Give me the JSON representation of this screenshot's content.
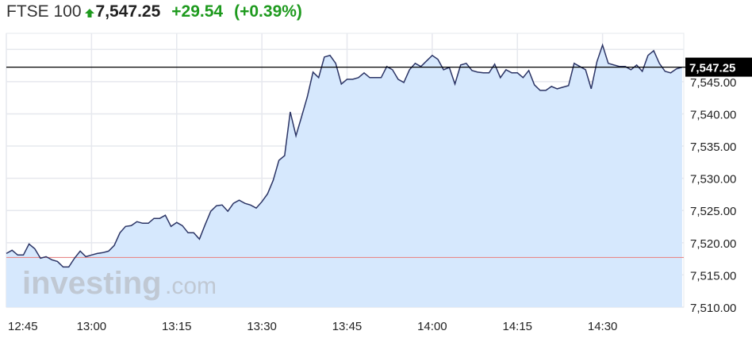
{
  "header": {
    "instrument": "FTSE 100",
    "direction_icon": "arrow-up-icon",
    "last": "7,547.25",
    "change": "+29.54",
    "change_percent": "(+0.39%)",
    "up_color": "#1e9a1e"
  },
  "watermark": {
    "brand": "investing",
    "suffix": ".com"
  },
  "chart_data": {
    "type": "area",
    "title": "",
    "xlabel": "",
    "ylabel": "",
    "x_start": "12:45",
    "interval_minutes": 1,
    "x_ticks": [
      "12:45",
      "13:00",
      "13:15",
      "13:30",
      "13:45",
      "14:00",
      "14:15",
      "14:30"
    ],
    "y_ticks": [
      "7,510.00",
      "7,515.00",
      "7,520.00",
      "7,525.00",
      "7,530.00",
      "7,535.00",
      "7,540.00",
      "7,545.00"
    ],
    "y_tick_values": [
      7510,
      7515,
      7520,
      7525,
      7530,
      7535,
      7540,
      7545
    ],
    "ylim": [
      7510,
      7552.5
    ],
    "xlim": [
      "12:45",
      "14:44"
    ],
    "grid": true,
    "last_value": 7547.25,
    "last_value_label": "7,547.25",
    "previous_close": 7517.71,
    "line_color": "#2b3465",
    "fill_color": "#d6e8fd",
    "previous_close_color": "#e88a8a",
    "values": [
      7518.33,
      7518.83,
      7518.09,
      7518.09,
      7519.81,
      7519.07,
      7517.59,
      7517.84,
      7517.35,
      7517.1,
      7516.23,
      7516.23,
      7517.59,
      7518.7,
      7517.84,
      7518.09,
      7518.33,
      7518.46,
      7518.7,
      7519.57,
      7521.54,
      7522.53,
      7522.65,
      7523.27,
      7523.02,
      7523.02,
      7523.77,
      7523.77,
      7524.26,
      7522.53,
      7523.15,
      7522.65,
      7521.54,
      7521.54,
      7520.56,
      7522.78,
      7524.88,
      7525.74,
      7525.86,
      7524.88,
      7526.11,
      7526.6,
      7526.11,
      7525.86,
      7525.37,
      7526.36,
      7527.59,
      7529.69,
      7532.78,
      7533.52,
      7540.31,
      7536.6,
      7539.57,
      7542.65,
      7546.48,
      7545.62,
      7548.83,
      7549.07,
      7547.84,
      7544.63,
      7545.37,
      7545.37,
      7545.62,
      7546.36,
      7545.62,
      7545.62,
      7545.62,
      7547.35,
      7546.85,
      7545.37,
      7544.88,
      7546.85,
      7547.84,
      7547.35,
      7548.21,
      7549.07,
      7548.46,
      7546.85,
      7547.22,
      7544.63,
      7547.59,
      7547.84,
      7546.73,
      7546.48,
      7546.36,
      7546.36,
      7547.72,
      7545.62,
      7546.85,
      7546.36,
      7546.36,
      7545.62,
      7546.73,
      7544.51,
      7543.64,
      7543.64,
      7544.26,
      7543.89,
      7544.14,
      7544.38,
      7547.84,
      7547.35,
      7546.85,
      7543.89,
      7548.09,
      7550.68,
      7547.84,
      7547.59,
      7547.35,
      7547.35,
      7546.85,
      7547.59,
      7546.6,
      7549.07,
      7549.81,
      7547.84,
      7546.6,
      7546.36,
      7546.98,
      7547.25
    ]
  }
}
